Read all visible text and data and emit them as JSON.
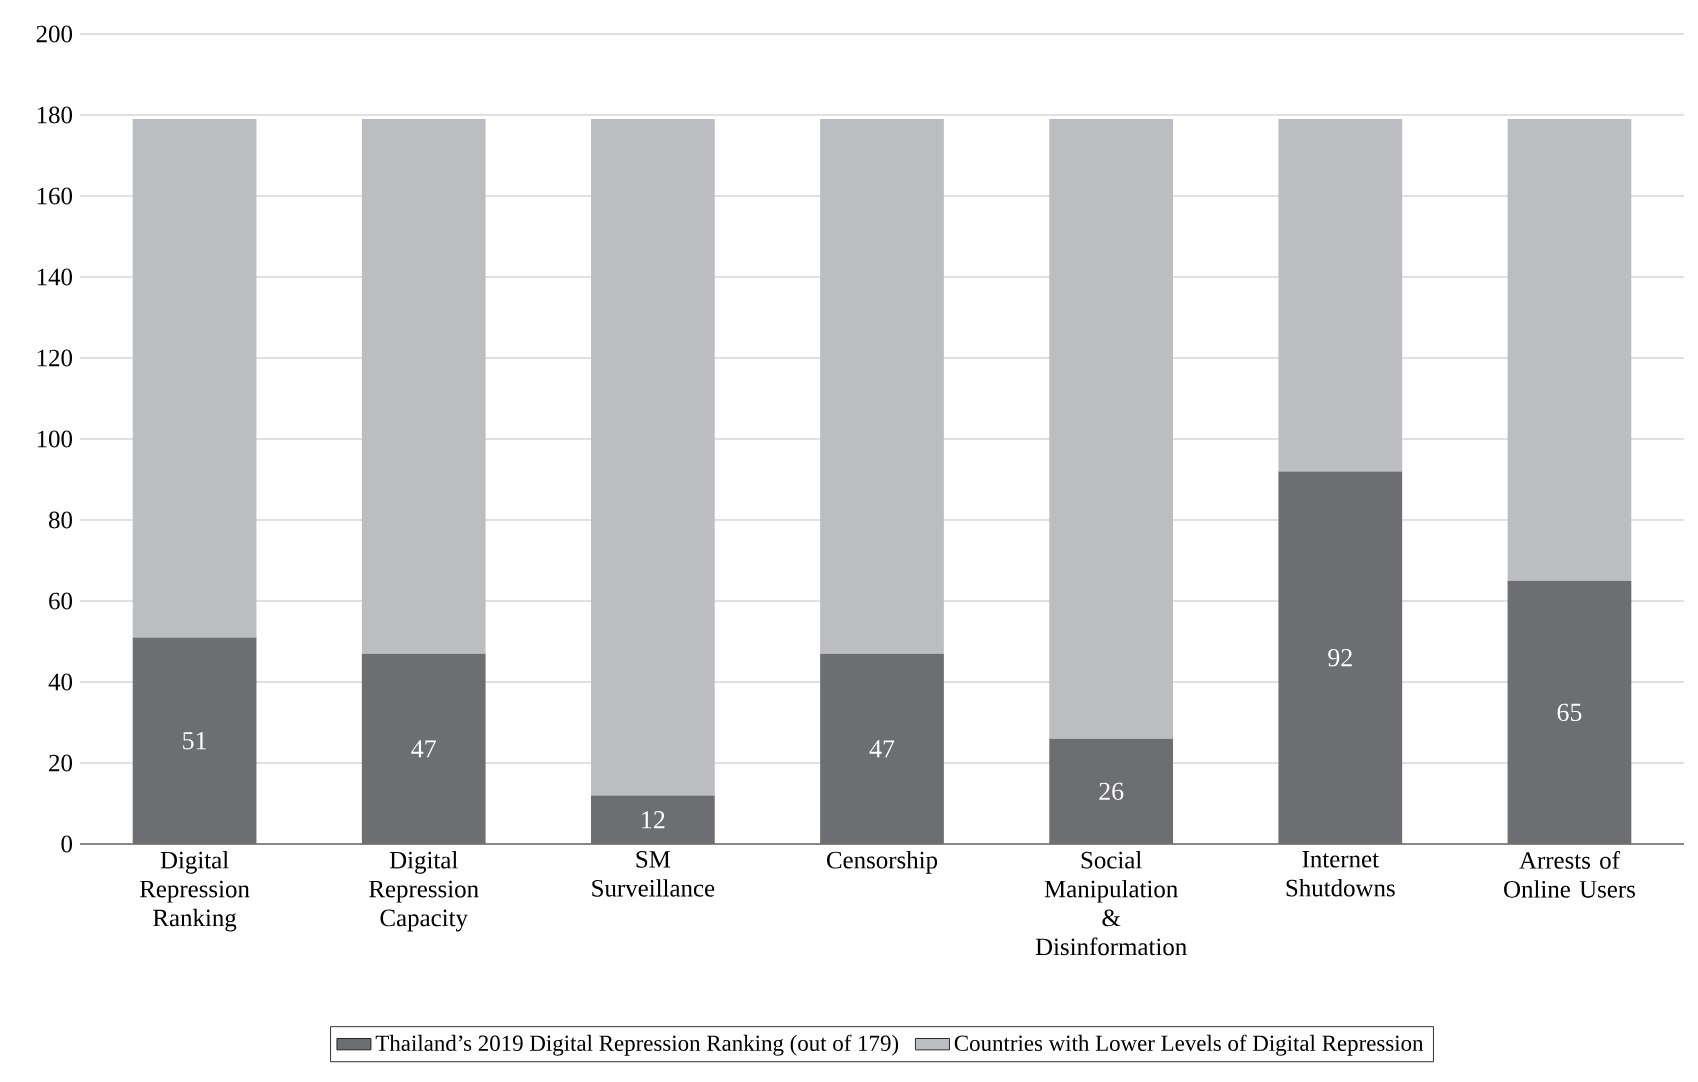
{
  "chart_data": {
    "type": "bar",
    "stacked": true,
    "categories": [
      "Digital Repression Ranking",
      "Digital Repression Capacity",
      "SM Surveillance",
      "Censorship",
      "Social Manipulation & Disinformation",
      "Internet Shutdowns",
      "Arrests of Online Users"
    ],
    "series": [
      {
        "name": "Thailand’s 2019 Digital Repression Ranking (out of 179)",
        "color": "#6d6e71",
        "values": [
          51,
          47,
          12,
          47,
          26,
          92,
          65
        ],
        "value_labels": [
          "51",
          "47",
          "12",
          "47",
          "26",
          "92",
          "65"
        ]
      },
      {
        "name": "Countries with Lower Levels of Digital Repression",
        "color": "#bcbdc0",
        "values": [
          128,
          132,
          167,
          132,
          153,
          87,
          114
        ]
      }
    ],
    "ylim": [
      0,
      200
    ],
    "yticks": [
      0,
      20,
      40,
      60,
      80,
      100,
      120,
      140,
      160,
      180,
      200
    ],
    "grid": "y",
    "legend": "bottom"
  }
}
